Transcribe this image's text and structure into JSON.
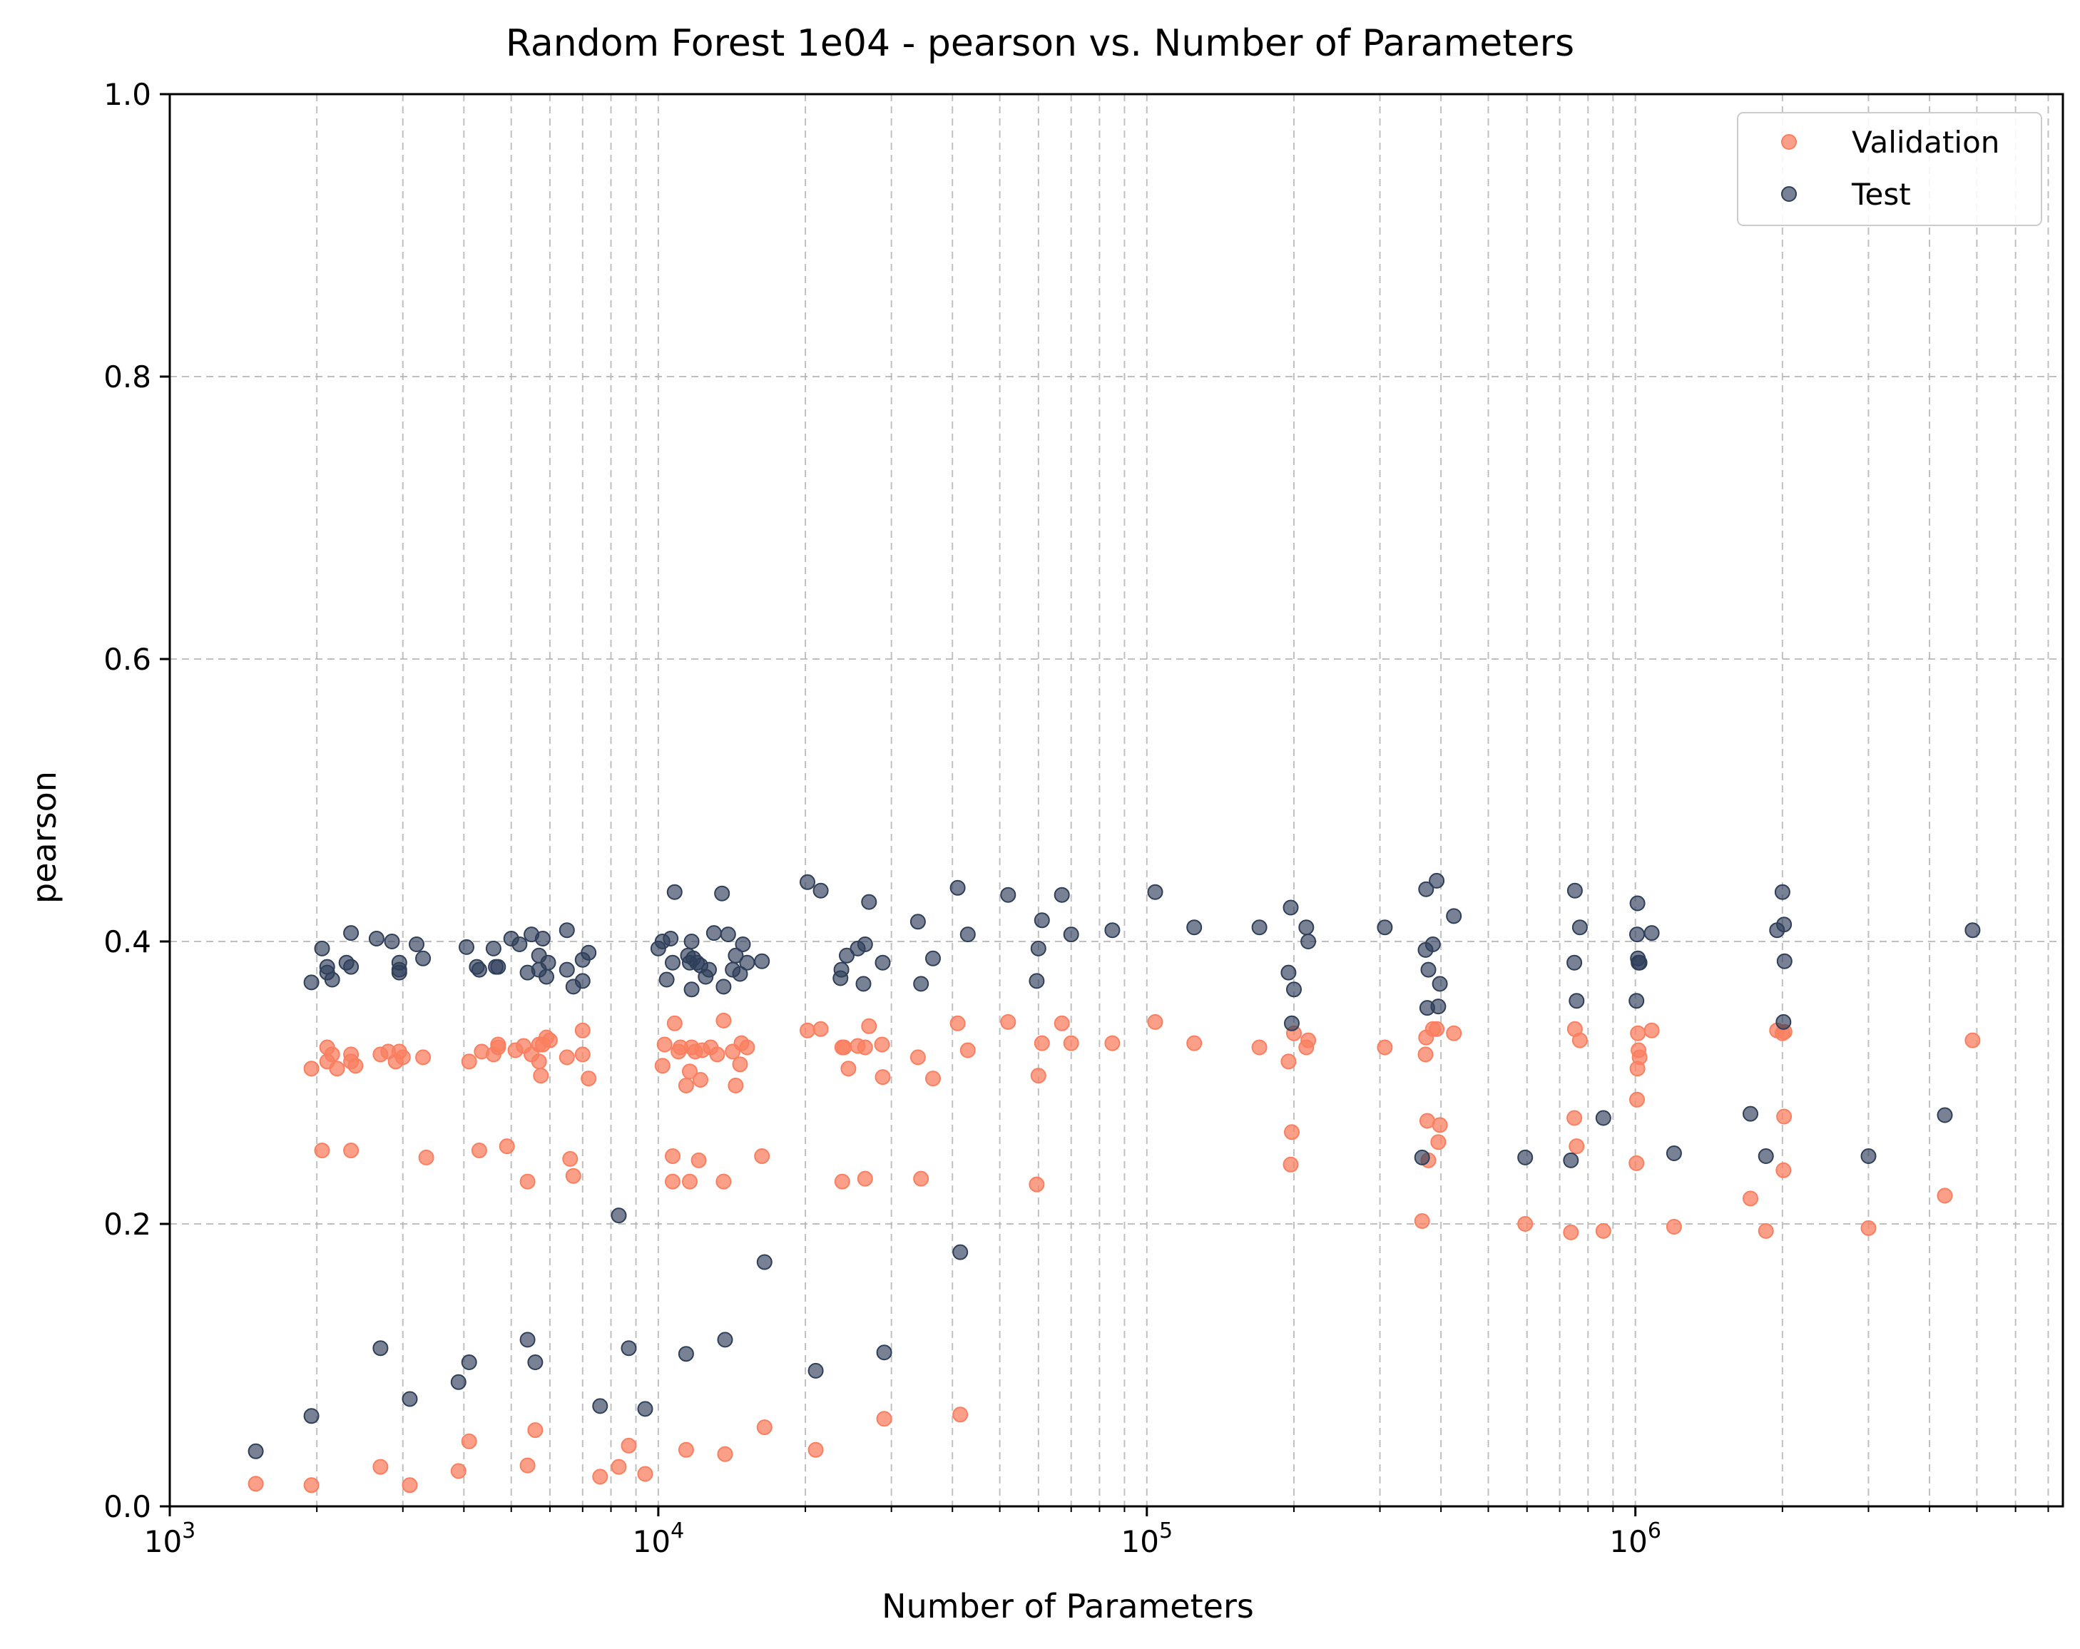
{
  "chart_data": {
    "type": "scatter",
    "title": "Random Forest 1e04 - pearson vs. Number of Parameters",
    "xlabel": "Number of Parameters",
    "ylabel": "pearson",
    "xscale": "log",
    "xlim": [
      1000,
      7500000
    ],
    "ylim": [
      0,
      1
    ],
    "x_tick_labels": [
      {
        "base": "10",
        "exp": "3"
      },
      {
        "base": "10",
        "exp": "4"
      },
      {
        "base": "10",
        "exp": "5"
      },
      {
        "base": "10",
        "exp": "6"
      }
    ],
    "y_tick_labels": [
      "0.0",
      "0.2",
      "0.4",
      "0.6",
      "0.8",
      "1.0"
    ],
    "grid": true,
    "legend": "top-right",
    "series": [
      {
        "name": "Validation",
        "color": "#fa7f60",
        "points": [
          [
            1500,
            0.016
          ],
          [
            1950,
            0.015
          ],
          [
            1950,
            0.31
          ],
          [
            2050,
            0.252
          ],
          [
            2100,
            0.315
          ],
          [
            2100,
            0.325
          ],
          [
            2150,
            0.32
          ],
          [
            2200,
            0.31
          ],
          [
            2350,
            0.32
          ],
          [
            2350,
            0.315
          ],
          [
            2350,
            0.252
          ],
          [
            2400,
            0.312
          ],
          [
            2700,
            0.028
          ],
          [
            2700,
            0.32
          ],
          [
            2800,
            0.322
          ],
          [
            2900,
            0.315
          ],
          [
            2950,
            0.322
          ],
          [
            3000,
            0.318
          ],
          [
            3100,
            0.015
          ],
          [
            3300,
            0.318
          ],
          [
            3350,
            0.247
          ],
          [
            3900,
            0.025
          ],
          [
            4100,
            0.046
          ],
          [
            4100,
            0.315
          ],
          [
            4300,
            0.252
          ],
          [
            4350,
            0.322
          ],
          [
            4600,
            0.32
          ],
          [
            4700,
            0.325
          ],
          [
            4700,
            0.327
          ],
          [
            4900,
            0.255
          ],
          [
            5100,
            0.323
          ],
          [
            5300,
            0.326
          ],
          [
            5400,
            0.23
          ],
          [
            5400,
            0.029
          ],
          [
            5500,
            0.32
          ],
          [
            5600,
            0.054
          ],
          [
            5700,
            0.315
          ],
          [
            5700,
            0.327
          ],
          [
            5750,
            0.305
          ],
          [
            5800,
            0.327
          ],
          [
            5900,
            0.332
          ],
          [
            6000,
            0.33
          ],
          [
            6500,
            0.318
          ],
          [
            6600,
            0.246
          ],
          [
            6700,
            0.234
          ],
          [
            7000,
            0.337
          ],
          [
            7000,
            0.32
          ],
          [
            7200,
            0.303
          ],
          [
            7600,
            0.021
          ],
          [
            8300,
            0.028
          ],
          [
            8700,
            0.043
          ],
          [
            9400,
            0.023
          ],
          [
            10200,
            0.312
          ],
          [
            10300,
            0.327
          ],
          [
            10700,
            0.248
          ],
          [
            10700,
            0.23
          ],
          [
            10800,
            0.342
          ],
          [
            11000,
            0.322
          ],
          [
            11100,
            0.325
          ],
          [
            11400,
            0.298
          ],
          [
            11400,
            0.04
          ],
          [
            11600,
            0.23
          ],
          [
            11600,
            0.308
          ],
          [
            11700,
            0.325
          ],
          [
            11900,
            0.322
          ],
          [
            12100,
            0.245
          ],
          [
            12200,
            0.302
          ],
          [
            12300,
            0.323
          ],
          [
            12800,
            0.325
          ],
          [
            13200,
            0.32
          ],
          [
            13600,
            0.344
          ],
          [
            13600,
            0.23
          ],
          [
            13700,
            0.037
          ],
          [
            14200,
            0.322
          ],
          [
            14400,
            0.298
          ],
          [
            14700,
            0.313
          ],
          [
            14800,
            0.328
          ],
          [
            15200,
            0.325
          ],
          [
            16300,
            0.248
          ],
          [
            16500,
            0.056
          ],
          [
            20200,
            0.337
          ],
          [
            21000,
            0.04
          ],
          [
            21500,
            0.338
          ],
          [
            23800,
            0.23
          ],
          [
            23800,
            0.325
          ],
          [
            24000,
            0.325
          ],
          [
            24500,
            0.31
          ],
          [
            25600,
            0.326
          ],
          [
            26500,
            0.232
          ],
          [
            26500,
            0.325
          ],
          [
            27000,
            0.34
          ],
          [
            28700,
            0.327
          ],
          [
            28800,
            0.304
          ],
          [
            29000,
            0.062
          ],
          [
            34000,
            0.318
          ],
          [
            34500,
            0.232
          ],
          [
            36500,
            0.303
          ],
          [
            41000,
            0.342
          ],
          [
            41500,
            0.065
          ],
          [
            43000,
            0.323
          ],
          [
            52000,
            0.343
          ],
          [
            59500,
            0.228
          ],
          [
            60000,
            0.305
          ],
          [
            61000,
            0.328
          ],
          [
            67000,
            0.342
          ],
          [
            70000,
            0.328
          ],
          [
            85000,
            0.328
          ],
          [
            104000,
            0.343
          ],
          [
            125000,
            0.328
          ],
          [
            170000,
            0.325
          ],
          [
            195000,
            0.315
          ],
          [
            197000,
            0.242
          ],
          [
            198000,
            0.265
          ],
          [
            200000,
            0.335
          ],
          [
            212000,
            0.325
          ],
          [
            214000,
            0.33
          ],
          [
            307000,
            0.325
          ],
          [
            366000,
            0.202
          ],
          [
            372000,
            0.32
          ],
          [
            373000,
            0.332
          ],
          [
            375000,
            0.273
          ],
          [
            377000,
            0.245
          ],
          [
            385000,
            0.338
          ],
          [
            392000,
            0.338
          ],
          [
            395000,
            0.258
          ],
          [
            398000,
            0.27
          ],
          [
            425000,
            0.335
          ],
          [
            595000,
            0.2
          ],
          [
            738000,
            0.194
          ],
          [
            750000,
            0.275
          ],
          [
            752000,
            0.338
          ],
          [
            758000,
            0.255
          ],
          [
            770000,
            0.33
          ],
          [
            860000,
            0.195
          ],
          [
            1005000,
            0.243
          ],
          [
            1008000,
            0.288
          ],
          [
            1010000,
            0.31
          ],
          [
            1012000,
            0.335
          ],
          [
            1015000,
            0.323
          ],
          [
            1020000,
            0.318
          ],
          [
            1080000,
            0.337
          ],
          [
            1200000,
            0.198
          ],
          [
            1720000,
            0.218
          ],
          [
            1850000,
            0.195
          ],
          [
            1950000,
            0.337
          ],
          [
            2000000,
            0.335
          ],
          [
            2010000,
            0.238
          ],
          [
            2015000,
            0.276
          ],
          [
            2020000,
            0.336
          ],
          [
            3000000,
            0.197
          ],
          [
            4300000,
            0.22
          ],
          [
            4900000,
            0.33
          ]
        ]
      },
      {
        "name": "Test",
        "color": "#2f3f5a",
        "points": [
          [
            1500,
            0.039
          ],
          [
            1950,
            0.064
          ],
          [
            1950,
            0.371
          ],
          [
            2050,
            0.395
          ],
          [
            2100,
            0.378
          ],
          [
            2100,
            0.382
          ],
          [
            2150,
            0.373
          ],
          [
            2300,
            0.385
          ],
          [
            2350,
            0.382
          ],
          [
            2350,
            0.406
          ],
          [
            2650,
            0.402
          ],
          [
            2700,
            0.112
          ],
          [
            2850,
            0.4
          ],
          [
            2950,
            0.38
          ],
          [
            2950,
            0.385
          ],
          [
            2950,
            0.378
          ],
          [
            3100,
            0.076
          ],
          [
            3200,
            0.398
          ],
          [
            3300,
            0.388
          ],
          [
            3900,
            0.088
          ],
          [
            4050,
            0.396
          ],
          [
            4100,
            0.102
          ],
          [
            4250,
            0.382
          ],
          [
            4300,
            0.38
          ],
          [
            4600,
            0.395
          ],
          [
            4650,
            0.382
          ],
          [
            4700,
            0.382
          ],
          [
            5000,
            0.402
          ],
          [
            5200,
            0.398
          ],
          [
            5400,
            0.118
          ],
          [
            5400,
            0.378
          ],
          [
            5500,
            0.405
          ],
          [
            5600,
            0.102
          ],
          [
            5700,
            0.39
          ],
          [
            5700,
            0.38
          ],
          [
            5800,
            0.402
          ],
          [
            5900,
            0.375
          ],
          [
            5950,
            0.385
          ],
          [
            6500,
            0.38
          ],
          [
            6500,
            0.408
          ],
          [
            6700,
            0.368
          ],
          [
            7000,
            0.372
          ],
          [
            7000,
            0.387
          ],
          [
            7200,
            0.392
          ],
          [
            7600,
            0.071
          ],
          [
            8300,
            0.206
          ],
          [
            8700,
            0.112
          ],
          [
            9400,
            0.069
          ],
          [
            10000,
            0.395
          ],
          [
            10200,
            0.4
          ],
          [
            10400,
            0.373
          ],
          [
            10600,
            0.402
          ],
          [
            10700,
            0.385
          ],
          [
            10800,
            0.435
          ],
          [
            11400,
            0.108
          ],
          [
            11500,
            0.39
          ],
          [
            11600,
            0.385
          ],
          [
            11700,
            0.366
          ],
          [
            11700,
            0.4
          ],
          [
            11800,
            0.388
          ],
          [
            12000,
            0.385
          ],
          [
            12200,
            0.383
          ],
          [
            12500,
            0.375
          ],
          [
            12700,
            0.38
          ],
          [
            13000,
            0.406
          ],
          [
            13500,
            0.434
          ],
          [
            13600,
            0.368
          ],
          [
            13700,
            0.118
          ],
          [
            13900,
            0.405
          ],
          [
            14200,
            0.38
          ],
          [
            14400,
            0.39
          ],
          [
            14700,
            0.377
          ],
          [
            14900,
            0.398
          ],
          [
            15200,
            0.385
          ],
          [
            16300,
            0.386
          ],
          [
            16500,
            0.173
          ],
          [
            20200,
            0.442
          ],
          [
            21000,
            0.096
          ],
          [
            21500,
            0.436
          ],
          [
            23600,
            0.374
          ],
          [
            23700,
            0.38
          ],
          [
            24300,
            0.39
          ],
          [
            25600,
            0.395
          ],
          [
            26300,
            0.37
          ],
          [
            26500,
            0.398
          ],
          [
            27000,
            0.428
          ],
          [
            28800,
            0.385
          ],
          [
            29000,
            0.109
          ],
          [
            34000,
            0.414
          ],
          [
            34500,
            0.37
          ],
          [
            36500,
            0.388
          ],
          [
            41000,
            0.438
          ],
          [
            41500,
            0.18
          ],
          [
            43000,
            0.405
          ],
          [
            52000,
            0.433
          ],
          [
            59500,
            0.372
          ],
          [
            60000,
            0.395
          ],
          [
            61000,
            0.415
          ],
          [
            67000,
            0.433
          ],
          [
            70000,
            0.405
          ],
          [
            85000,
            0.408
          ],
          [
            104000,
            0.435
          ],
          [
            125000,
            0.41
          ],
          [
            170000,
            0.41
          ],
          [
            195000,
            0.378
          ],
          [
            197000,
            0.424
          ],
          [
            198000,
            0.342
          ],
          [
            200000,
            0.366
          ],
          [
            212000,
            0.41
          ],
          [
            214000,
            0.4
          ],
          [
            307000,
            0.41
          ],
          [
            366000,
            0.247
          ],
          [
            372000,
            0.394
          ],
          [
            373000,
            0.437
          ],
          [
            375000,
            0.353
          ],
          [
            377000,
            0.38
          ],
          [
            385000,
            0.398
          ],
          [
            392000,
            0.443
          ],
          [
            395000,
            0.354
          ],
          [
            398000,
            0.37
          ],
          [
            425000,
            0.418
          ],
          [
            595000,
            0.247
          ],
          [
            738000,
            0.245
          ],
          [
            750000,
            0.385
          ],
          [
            752000,
            0.436
          ],
          [
            758000,
            0.358
          ],
          [
            770000,
            0.41
          ],
          [
            860000,
            0.275
          ],
          [
            1005000,
            0.358
          ],
          [
            1008000,
            0.405
          ],
          [
            1010000,
            0.427
          ],
          [
            1012000,
            0.388
          ],
          [
            1015000,
            0.385
          ],
          [
            1020000,
            0.385
          ],
          [
            1080000,
            0.406
          ],
          [
            1200000,
            0.25
          ],
          [
            1720000,
            0.278
          ],
          [
            1850000,
            0.248
          ],
          [
            1950000,
            0.408
          ],
          [
            2000000,
            0.435
          ],
          [
            2010000,
            0.343
          ],
          [
            2015000,
            0.412
          ],
          [
            2020000,
            0.386
          ],
          [
            3000000,
            0.248
          ],
          [
            4300000,
            0.277
          ],
          [
            4900000,
            0.408
          ]
        ]
      }
    ]
  }
}
